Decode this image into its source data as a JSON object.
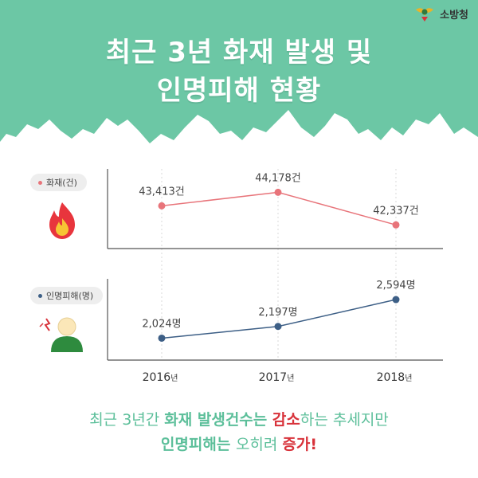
{
  "header": {
    "logo_text": "소방청",
    "title_line1": "최근 3년 화재 발생 및",
    "title_line2": "인명피해 현황"
  },
  "colors": {
    "mint": "#6cc7a5",
    "fire_series": "#e8747a",
    "casualty_series": "#3d5f86",
    "accent_red": "#d8323a"
  },
  "chart_data": [
    {
      "type": "line",
      "legend": "화재(건)",
      "icon": "fire-icon",
      "x": [
        "2016년",
        "2017년",
        "2018년"
      ],
      "values": [
        43413,
        44178,
        42337
      ],
      "labels": [
        "43,413건",
        "44,178건",
        "42,337건"
      ],
      "ylim": [
        41000,
        45500
      ]
    },
    {
      "type": "line",
      "legend": "인명피해(명)",
      "icon": "injured-person-icon",
      "x": [
        "2016년",
        "2017년",
        "2018년"
      ],
      "values": [
        2024,
        2197,
        2594
      ],
      "labels": [
        "2,024명",
        "2,197명",
        "2,594명"
      ],
      "ylim": [
        1700,
        2900
      ]
    }
  ],
  "axis": {
    "years": [
      "2016",
      "2017",
      "2018"
    ],
    "year_suffix": "년"
  },
  "footer": {
    "l1_a": "최근 3년간 ",
    "l1_b": "화재 발생건수는 ",
    "l1_c": "감소",
    "l1_d": "하는 추세지만",
    "l2_a": "인명피해는 ",
    "l2_b": "오히려 ",
    "l2_c": "증가!"
  }
}
